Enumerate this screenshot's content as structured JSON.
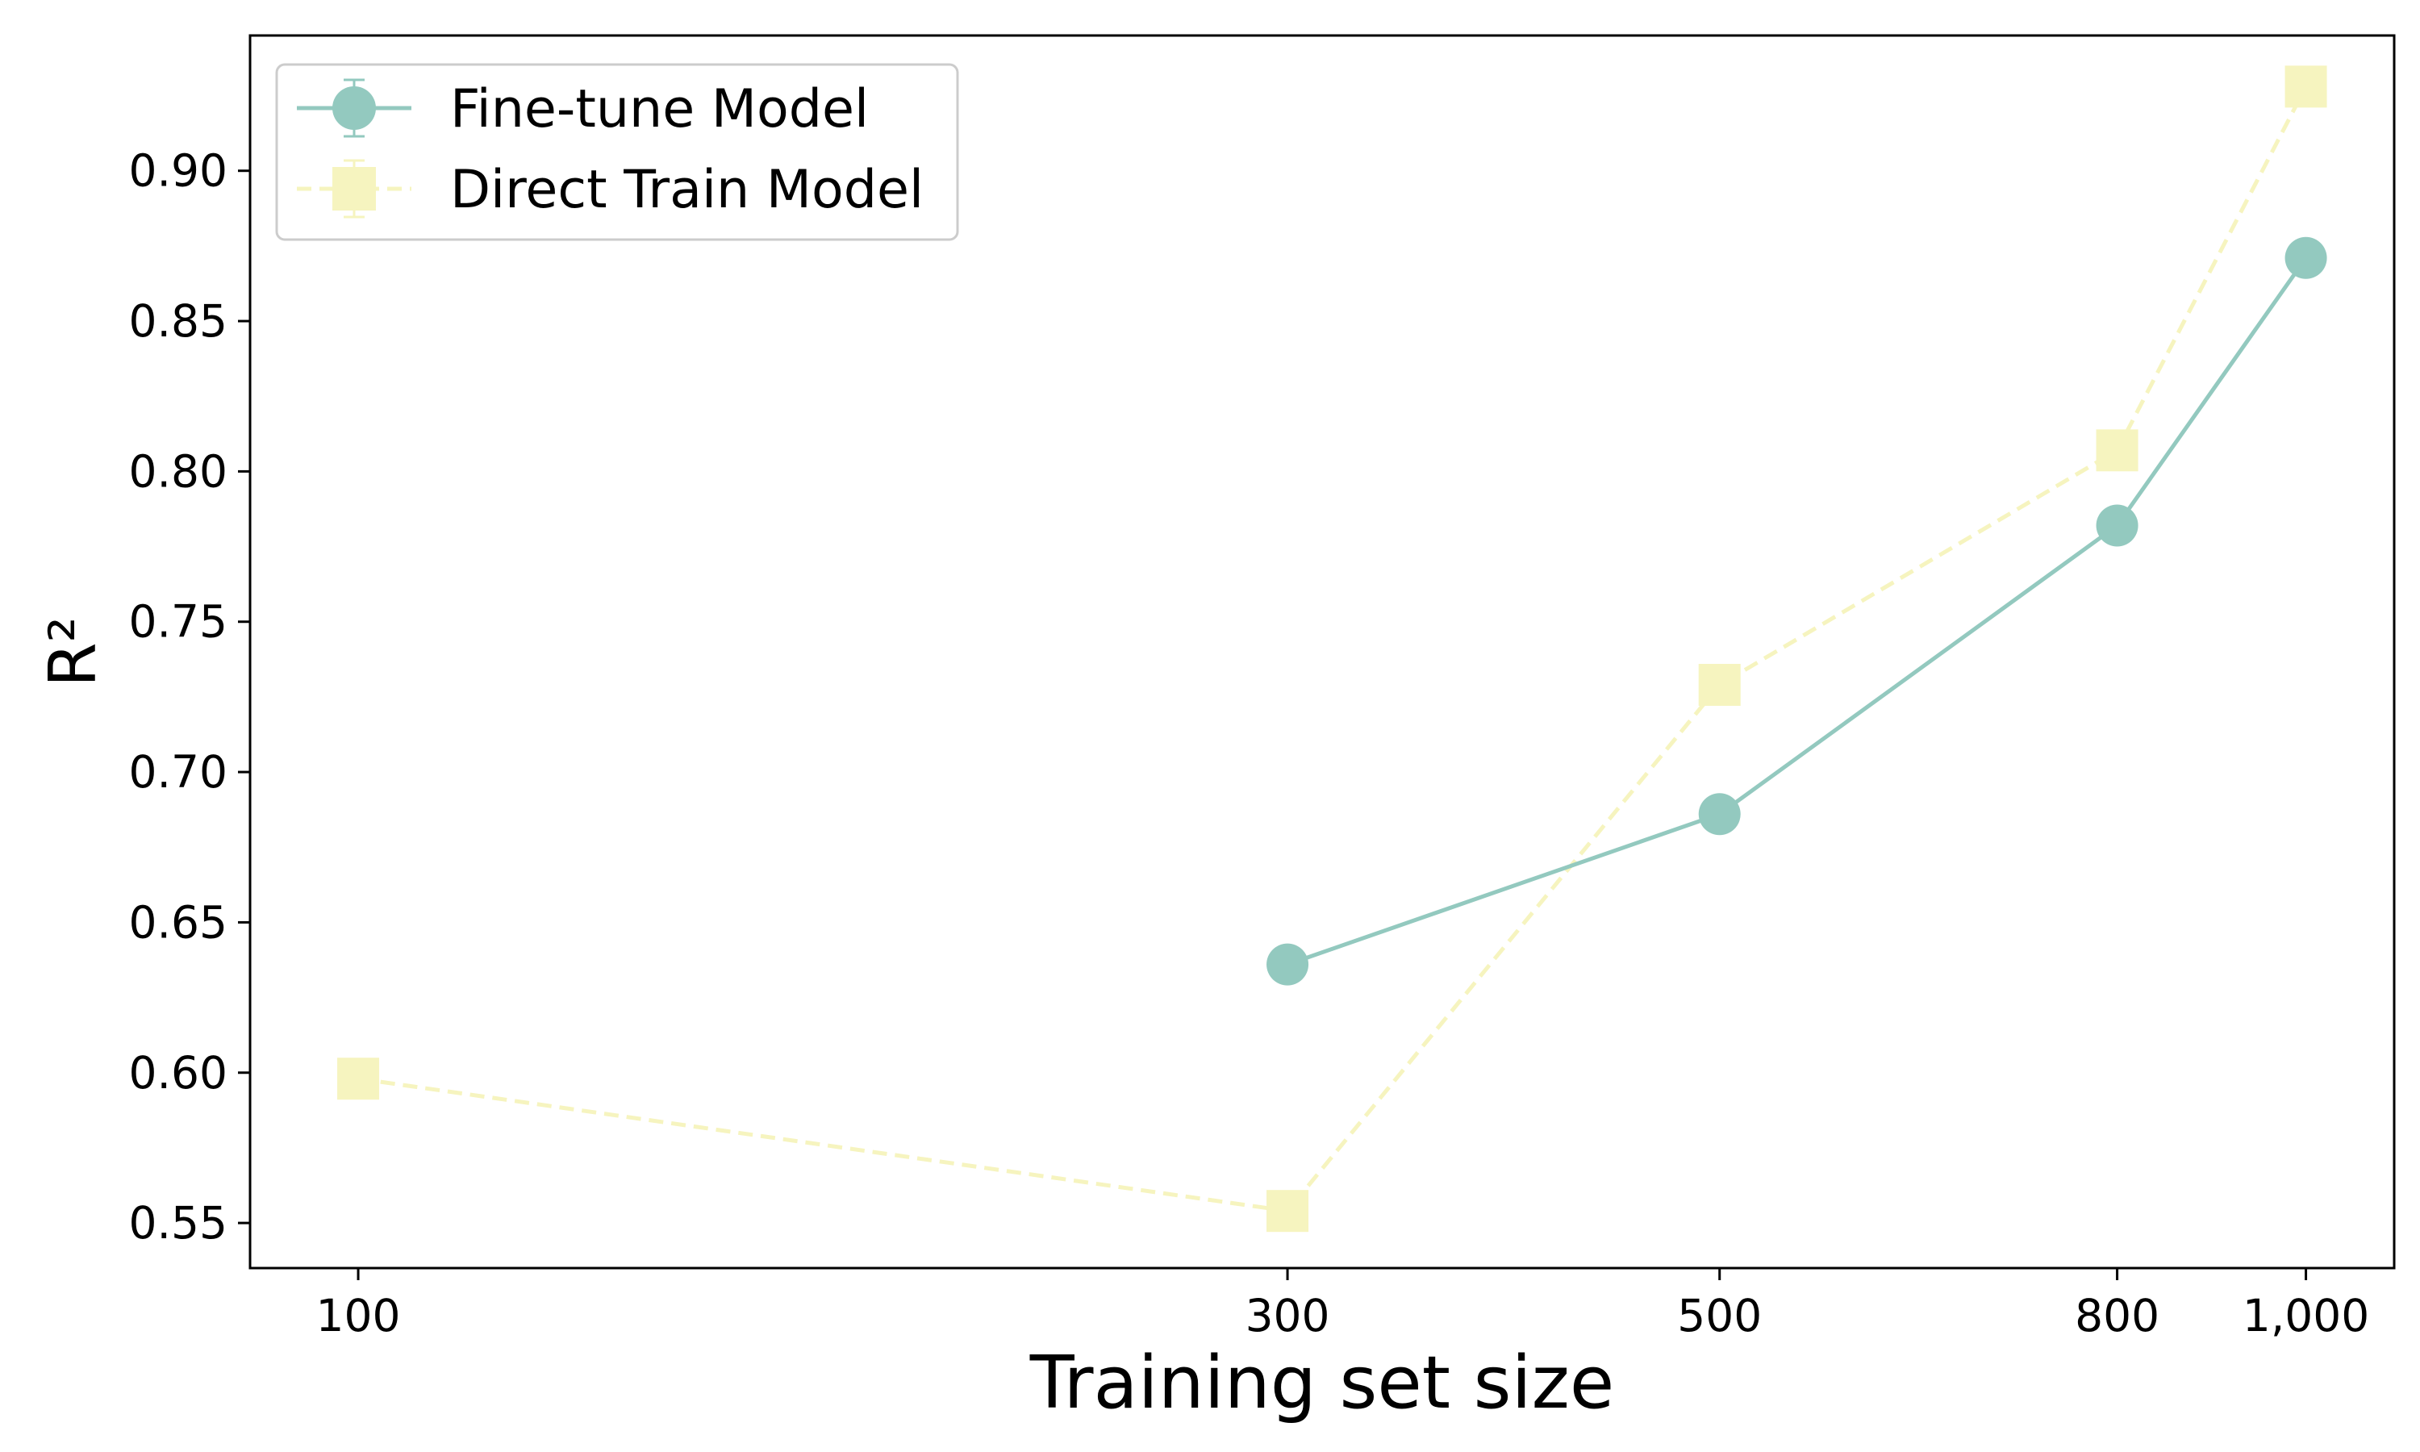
{
  "chart_data": {
    "type": "line",
    "xlabel": "Training set size",
    "ylabel": "R²",
    "x_scale": "log",
    "xlim": [
      88,
      1110
    ],
    "ylim": [
      0.535,
      0.945
    ],
    "x_ticks": [
      {
        "value": 100,
        "label": "100"
      },
      {
        "value": 300,
        "label": "300"
      },
      {
        "value": 500,
        "label": "500"
      },
      {
        "value": 800,
        "label": "800"
      },
      {
        "value": 1000,
        "label": "1,000"
      }
    ],
    "y_ticks": [
      {
        "value": 0.55,
        "label": "0.55"
      },
      {
        "value": 0.6,
        "label": "0.60"
      },
      {
        "value": 0.65,
        "label": "0.65"
      },
      {
        "value": 0.7,
        "label": "0.70"
      },
      {
        "value": 0.75,
        "label": "0.75"
      },
      {
        "value": 0.8,
        "label": "0.80"
      },
      {
        "value": 0.85,
        "label": "0.85"
      },
      {
        "value": 0.9,
        "label": "0.90"
      }
    ],
    "grid": false,
    "legend_position": "top-left",
    "series": [
      {
        "name": "Fine-tune Model",
        "color": "#93c9bf",
        "marker": "circle",
        "line_style": "solid",
        "x": [
          300,
          500,
          800,
          1000
        ],
        "y": [
          0.636,
          0.686,
          0.782,
          0.871
        ]
      },
      {
        "name": "Direct Train Model",
        "color": "#f6f4bf",
        "marker": "square",
        "line_style": "dashed",
        "x": [
          100,
          300,
          500,
          800,
          1000
        ],
        "y": [
          0.598,
          0.554,
          0.729,
          0.807,
          0.928
        ]
      }
    ]
  }
}
